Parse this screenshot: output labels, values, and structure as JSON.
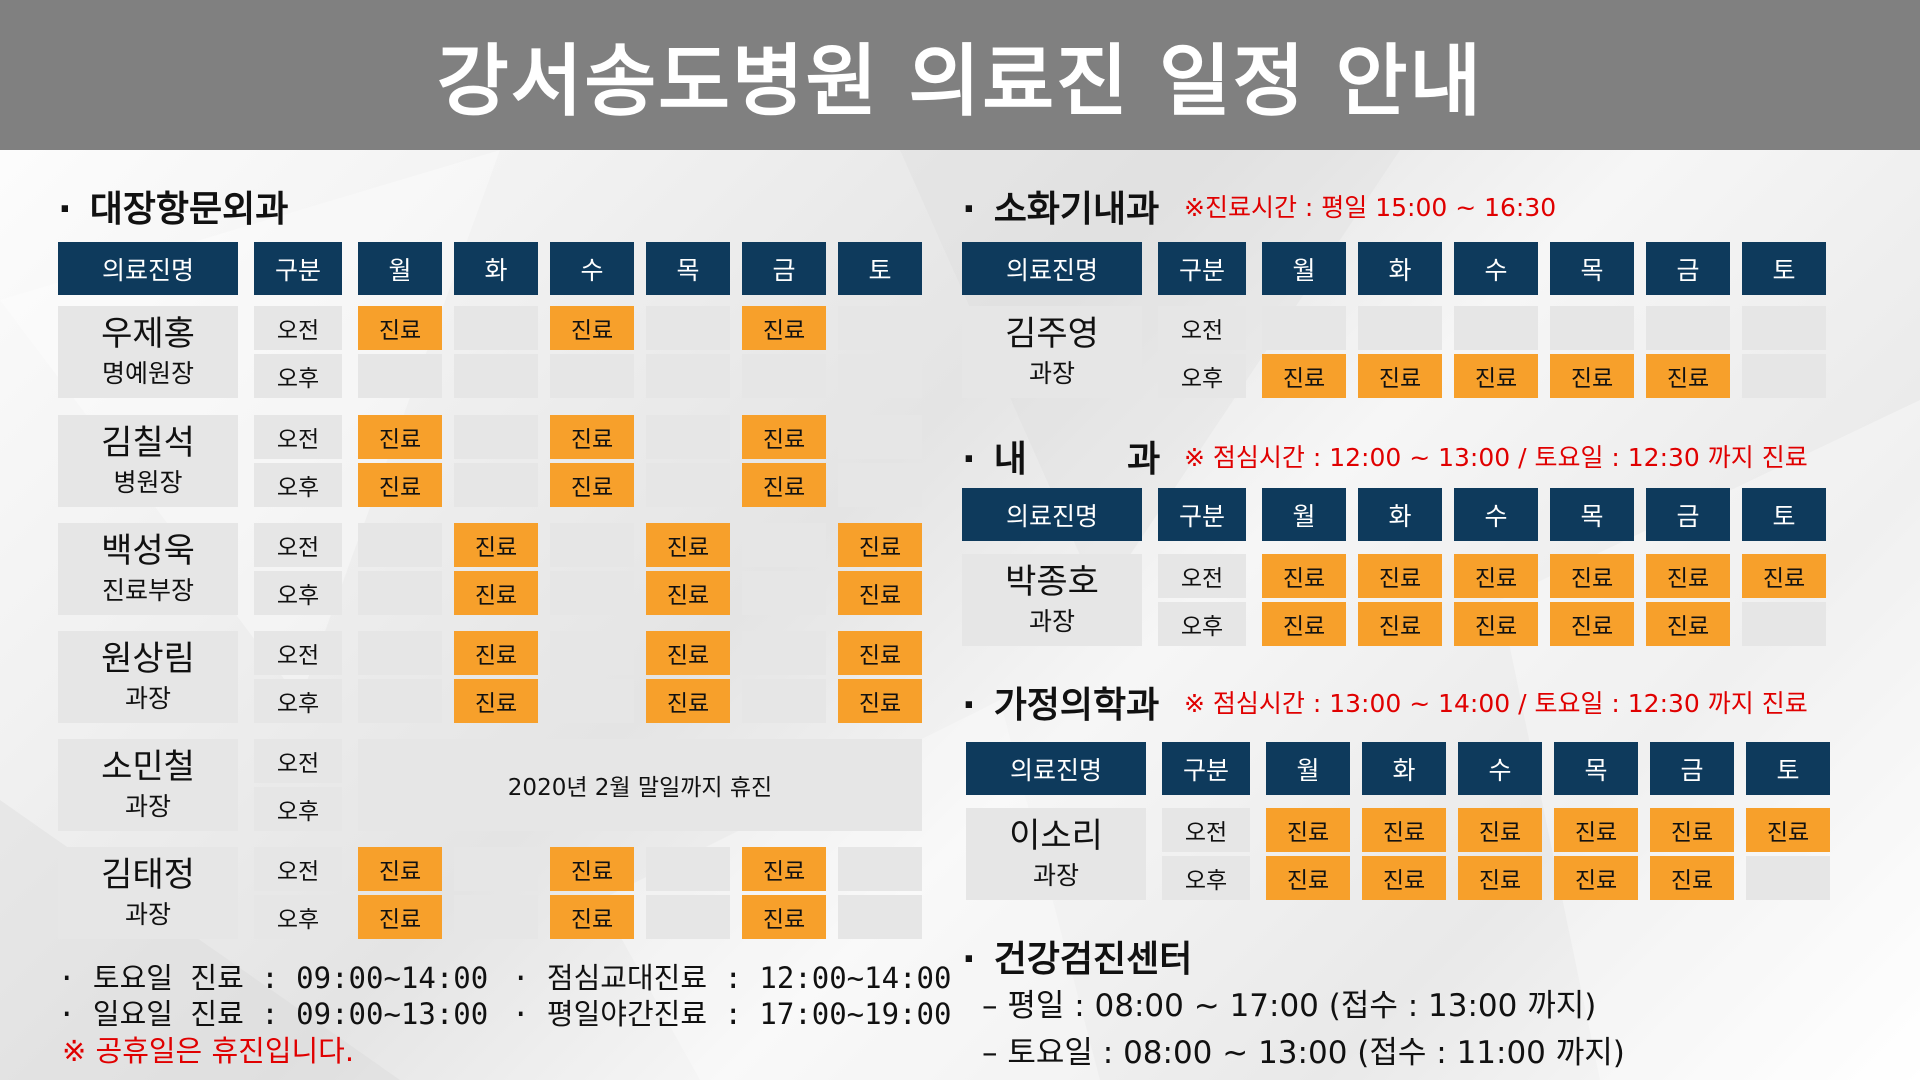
{
  "title": "강서송도병원 의료진 일정 안내",
  "bullet": "·",
  "colors": {
    "header": "#0e3a5c",
    "active": "#f7a02b",
    "empty": "#e6e6e6",
    "note": "#e00000",
    "title_bar": "#808080"
  },
  "col_headers": [
    "의료진명",
    "구분",
    "월",
    "화",
    "수",
    "목",
    "금",
    "토"
  ],
  "periods": [
    "오전",
    "오후"
  ],
  "active_label": "진료",
  "departments": [
    {
      "name": "대장항문외과",
      "note": "",
      "doctors": [
        {
          "name": "우제홍",
          "title": "명예원장",
          "am": [
            1,
            0,
            1,
            0,
            1,
            0
          ],
          "pm": [
            0,
            0,
            0,
            0,
            0,
            0
          ]
        },
        {
          "name": "김칠석",
          "title": "병원장",
          "am": [
            1,
            0,
            1,
            0,
            1,
            0
          ],
          "pm": [
            1,
            0,
            1,
            0,
            1,
            0
          ]
        },
        {
          "name": "백성욱",
          "title": "진료부장",
          "am": [
            0,
            1,
            0,
            1,
            0,
            1
          ],
          "pm": [
            0,
            1,
            0,
            1,
            0,
            1
          ]
        },
        {
          "name": "원상림",
          "title": "과장",
          "am": [
            0,
            1,
            0,
            1,
            0,
            1
          ],
          "pm": [
            0,
            1,
            0,
            1,
            0,
            1
          ]
        },
        {
          "name": "소민철",
          "title": "과장",
          "am": [
            0,
            0,
            0,
            0,
            0,
            0
          ],
          "pm": [
            0,
            0,
            0,
            0,
            0,
            0
          ],
          "span_note": "2020년 2월 말일까지 휴진"
        },
        {
          "name": "김태정",
          "title": "과장",
          "am": [
            1,
            0,
            1,
            0,
            1,
            0
          ],
          "pm": [
            1,
            0,
            1,
            0,
            1,
            0
          ]
        }
      ]
    },
    {
      "name": "소화기내과",
      "note": "※진료시간 : 평일 15:00 ~ 16:30",
      "doctors": [
        {
          "name": "김주영",
          "title": "과장",
          "am": [
            0,
            0,
            0,
            0,
            0,
            0
          ],
          "pm": [
            1,
            1,
            1,
            1,
            1,
            0
          ]
        }
      ]
    },
    {
      "name": "내        과",
      "note": "※ 점심시간 : 12:00 ~ 13:00 / 토요일 : 12:30 까지 진료",
      "doctors": [
        {
          "name": "박종호",
          "title": "과장",
          "am": [
            1,
            1,
            1,
            1,
            1,
            1
          ],
          "pm": [
            1,
            1,
            1,
            1,
            1,
            0
          ]
        }
      ]
    },
    {
      "name": "가정의학과",
      "note": "※ 점심시간 : 13:00 ~ 14:00 / 토요일 : 12:30 까지 진료",
      "doctors": [
        {
          "name": "이소리",
          "title": "과장",
          "am": [
            1,
            1,
            1,
            1,
            1,
            1
          ],
          "pm": [
            1,
            1,
            1,
            1,
            1,
            0
          ]
        }
      ]
    }
  ],
  "footer": {
    "left": [
      "· 토요일 진료 : 09:00~14:00",
      "· 일요일 진료 : 09:00~13:00"
    ],
    "right": [
      "· 점심교대진료 : 12:00~14:00",
      "· 평일야간진료 : 17:00~19:00"
    ],
    "holiday_note": "※ 공휴일은 휴진입니다."
  },
  "health_center": {
    "name": "건강검진센터",
    "lines": [
      "– 평일 : 08:00 ~ 17:00 (접수 : 13:00 까지)",
      "– 토요일 : 08:00 ~ 13:00 (접수 : 11:00 까지)"
    ]
  }
}
